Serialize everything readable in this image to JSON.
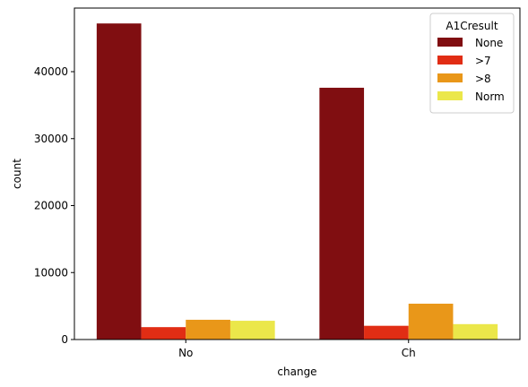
{
  "chart_data": {
    "type": "bar",
    "categories": [
      "No",
      "Ch"
    ],
    "series": [
      {
        "name": "None",
        "color": "#800e11",
        "values": [
          47200,
          37600
        ]
      },
      {
        "name": ">7",
        "color": "#e12d14",
        "values": [
          1850,
          2050
        ]
      },
      {
        "name": ">8",
        "color": "#e99719",
        "values": [
          2950,
          5350
        ]
      },
      {
        "name": "Norm",
        "color": "#ebe74a",
        "values": [
          2800,
          2300
        ]
      }
    ],
    "title": "",
    "xlabel": "change",
    "ylabel": "count",
    "ylim": [
      0,
      49500
    ],
    "yticks": [
      0,
      10000,
      20000,
      30000,
      40000
    ],
    "grid": false,
    "legend": {
      "title": "A1Cresult",
      "placement": "top-right"
    }
  }
}
